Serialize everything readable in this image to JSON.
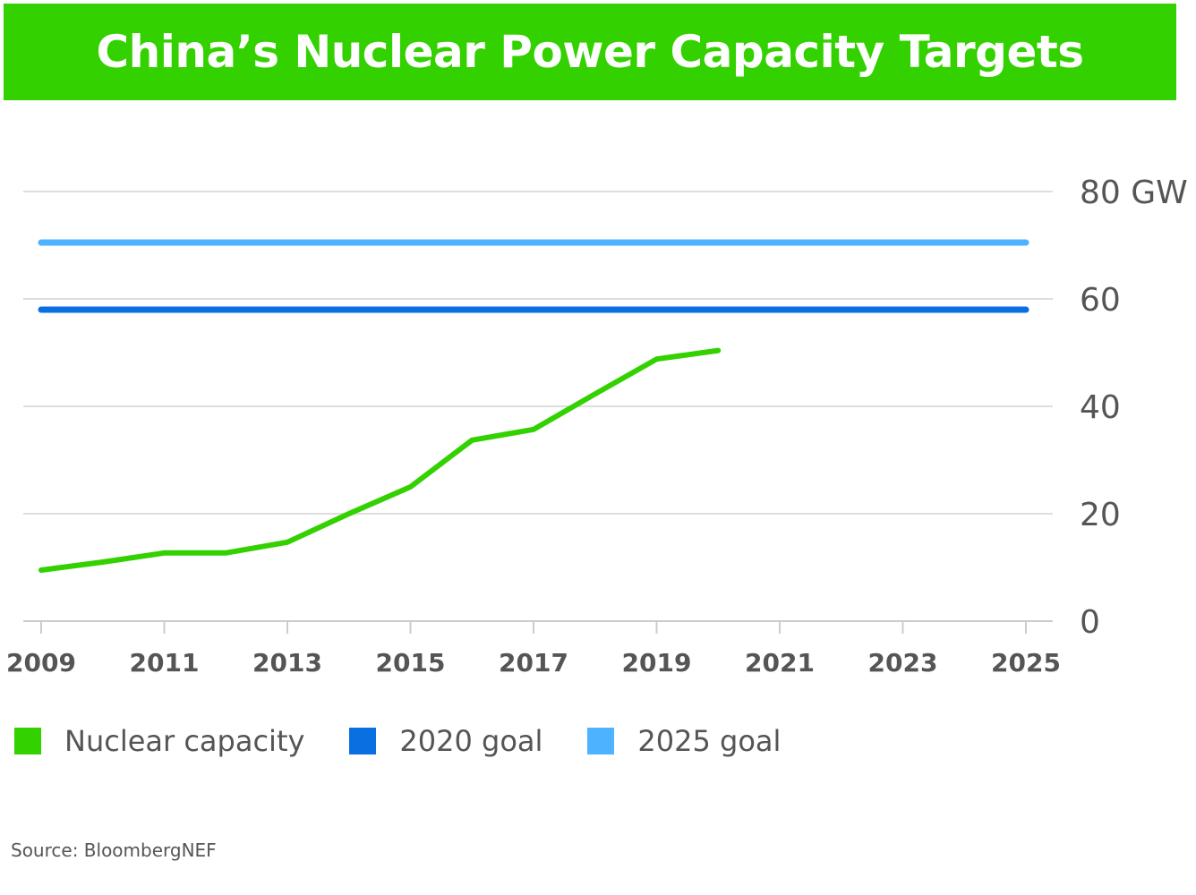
{
  "title": "China’s Nuclear Power Capacity Targets",
  "source": "Source: BloombergNEF",
  "colors": {
    "title_bg": "#33d100",
    "nuclear_capacity": "#33d100",
    "goal_2020": "#0a6fe0",
    "goal_2025": "#4db2ff",
    "grid": "#dddddd",
    "text": "#555555"
  },
  "legend": [
    {
      "label": "Nuclear capacity",
      "color": "#33d100"
    },
    {
      "label": "2020 goal",
      "color": "#0a6fe0"
    },
    {
      "label": "2025 goal",
      "color": "#4db2ff"
    }
  ],
  "chart_data": {
    "type": "line",
    "title": "China’s Nuclear Power Capacity Targets",
    "xlabel": "",
    "ylabel": "",
    "xlim": [
      2009,
      2025
    ],
    "ylim": [
      0,
      80
    ],
    "y_ticks": [
      0,
      20,
      40,
      60,
      80
    ],
    "y_tick_labels": [
      "0",
      "20",
      "40",
      "60",
      "80 GW"
    ],
    "x_ticks": [
      2009,
      2011,
      2013,
      2015,
      2017,
      2019,
      2021,
      2023,
      2025
    ],
    "x_tick_labels": [
      "2009",
      "2011",
      "2013",
      "2015",
      "2017",
      "2019",
      "2021",
      "2023",
      "2025"
    ],
    "y_axis_position": "right",
    "grid": "horizontal",
    "legend_position": "bottom-left",
    "series": [
      {
        "name": "Nuclear capacity",
        "color": "#33d100",
        "x": [
          2009,
          2010,
          2011,
          2012,
          2013,
          2014,
          2015,
          2016,
          2017,
          2018,
          2019,
          2020
        ],
        "y": [
          9.5,
          11,
          12.7,
          12.7,
          14.7,
          20,
          25,
          33.7,
          35.7,
          42.3,
          48.8,
          50.4
        ]
      },
      {
        "name": "2020 goal",
        "color": "#0a6fe0",
        "x": [
          2009,
          2025
        ],
        "y": [
          58,
          58
        ]
      },
      {
        "name": "2025 goal",
        "color": "#4db2ff",
        "x": [
          2009,
          2025
        ],
        "y": [
          70.5,
          70.5
        ]
      }
    ]
  }
}
